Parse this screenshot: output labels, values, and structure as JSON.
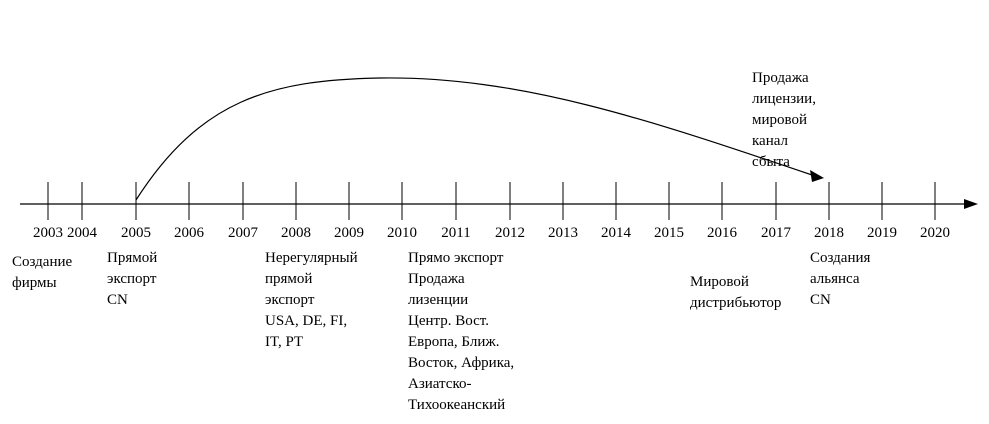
{
  "years": [
    "2003",
    "2004",
    "2005",
    "2006",
    "2007",
    "2008",
    "2009",
    "2010",
    "2011",
    "2012",
    "2013",
    "2014",
    "2015",
    "2016",
    "2017",
    "2018",
    "2019",
    "2020"
  ],
  "events": [
    {
      "lines": [
        "Создание",
        "фирмы"
      ]
    },
    {
      "lines": [
        "Прямой",
        "экспорт",
        "CN"
      ]
    },
    {
      "lines": [
        "Нерегулярный",
        "прямой",
        "экспорт",
        "USA, DE, FI,",
        "IT, PT"
      ]
    },
    {
      "lines": [
        "Прямо экспорт",
        "Продажа",
        "лизенции",
        "Центр. Вост.",
        "Европа, Ближ.",
        "Восток, Африка,",
        "Азиатско-",
        "Тихоокеанский"
      ]
    },
    {
      "lines": [
        "Мировой",
        "дистрибьютор"
      ]
    },
    {
      "lines": [
        "Создания",
        "альянса",
        "CN"
      ]
    }
  ],
  "annotation": {
    "lines": [
      "Продажа",
      "лицензии,",
      "мировой",
      "канал",
      "сбыта"
    ]
  }
}
